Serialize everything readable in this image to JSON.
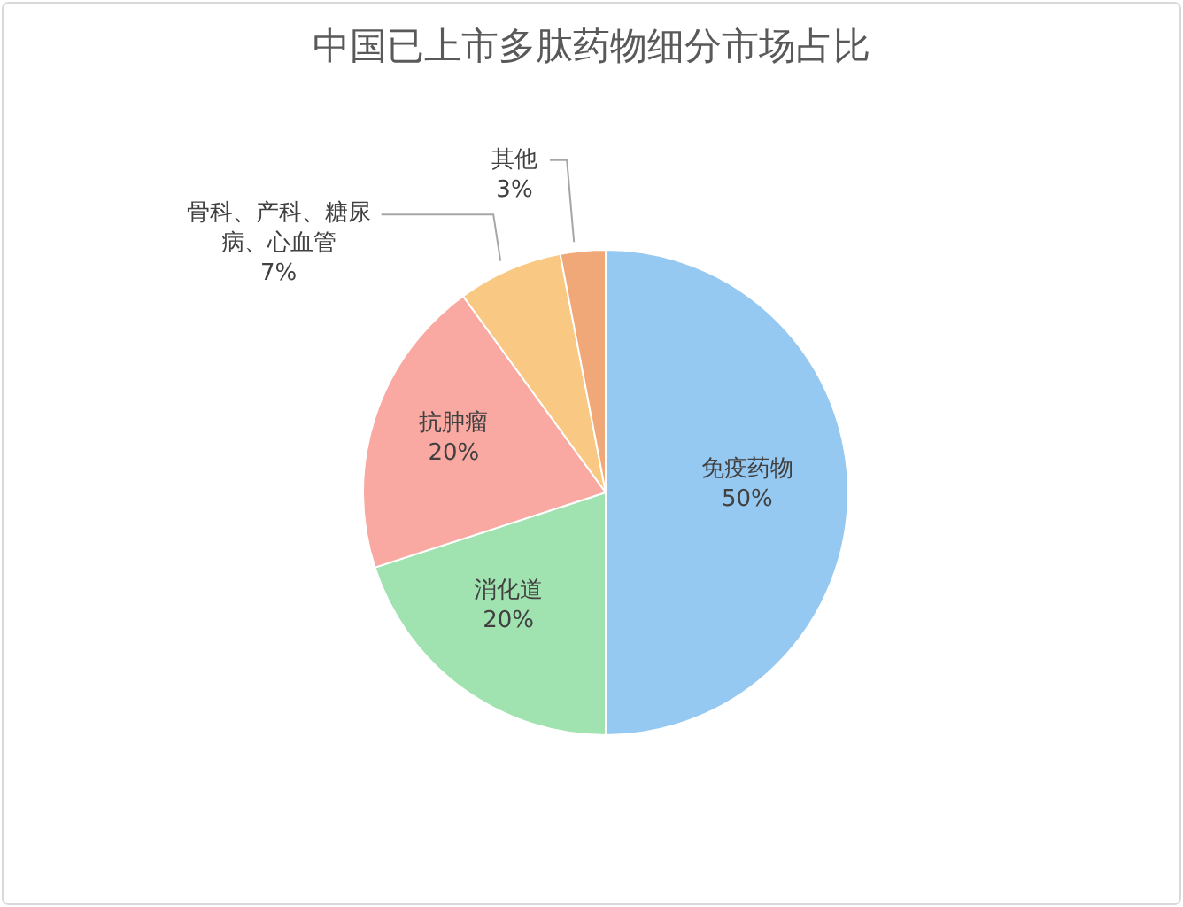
{
  "chart_data": {
    "type": "pie",
    "title": "中国已上市多肽药物细分市场占比",
    "categories": [
      "免疫药物",
      "消化道",
      "抗肿瘤",
      "骨科、产科、糖尿病、心血管",
      "其他"
    ],
    "values": [
      50,
      20,
      20,
      7,
      3
    ],
    "value_labels": [
      "50%",
      "20%",
      "20%",
      "7%",
      "3%"
    ],
    "colors": [
      "#96c9f2",
      "#a1e2b1",
      "#f9a9a1",
      "#f9c882",
      "#f1a878"
    ],
    "legend": false
  }
}
